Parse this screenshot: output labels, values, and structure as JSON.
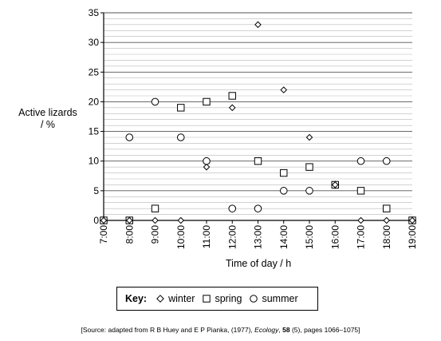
{
  "chart_data": {
    "type": "scatter",
    "title": "",
    "ylabel_lines": [
      "Active lizards",
      "/ %"
    ],
    "xlabel": "Time of day / h",
    "ylim": [
      0,
      35
    ],
    "y_ticks": [
      0,
      5,
      10,
      15,
      20,
      25,
      30,
      35
    ],
    "y_minor_step": 1,
    "x_categories": [
      "7:00",
      "8:00",
      "9:00",
      "10:00",
      "11:00",
      "12:00",
      "13:00",
      "14:00",
      "15:00",
      "16:00",
      "17:00",
      "18:00",
      "19:00"
    ],
    "grid": true,
    "series": [
      {
        "name": "winter",
        "marker": "diamond",
        "points": [
          [
            7,
            0
          ],
          [
            8,
            0
          ],
          [
            9,
            0
          ],
          [
            10,
            0
          ],
          [
            11,
            9
          ],
          [
            12,
            19
          ],
          [
            13,
            33
          ],
          [
            14,
            22
          ],
          [
            15,
            14
          ],
          [
            16,
            6
          ],
          [
            17,
            0
          ],
          [
            18,
            0
          ],
          [
            19,
            0
          ]
        ]
      },
      {
        "name": "spring",
        "marker": "square",
        "points": [
          [
            7,
            0
          ],
          [
            8,
            0
          ],
          [
            9,
            2
          ],
          [
            10,
            19
          ],
          [
            11,
            20
          ],
          [
            12,
            21
          ],
          [
            13,
            10
          ],
          [
            14,
            8
          ],
          [
            15,
            9
          ],
          [
            16,
            6
          ],
          [
            17,
            5
          ],
          [
            18,
            2
          ],
          [
            19,
            0
          ]
        ]
      },
      {
        "name": "summer",
        "marker": "circle",
        "points": [
          [
            7,
            0
          ],
          [
            8,
            14
          ],
          [
            9,
            20
          ],
          [
            10,
            14
          ],
          [
            11,
            10
          ],
          [
            12,
            2
          ],
          [
            13,
            2
          ],
          [
            14,
            5
          ],
          [
            15,
            5
          ],
          [
            16,
            6
          ],
          [
            17,
            10
          ],
          [
            18,
            10
          ],
          [
            19,
            0
          ]
        ]
      }
    ]
  },
  "key": {
    "title": "Key:",
    "winter": "winter",
    "spring": "spring",
    "summer": "summer"
  },
  "source": {
    "prefix": "[Source: adapted from R B Huey and E P Pianka, (1977), ",
    "journal": "Ecology",
    "volume": "58",
    "suffix": " (5), pages 1066–1075]"
  }
}
